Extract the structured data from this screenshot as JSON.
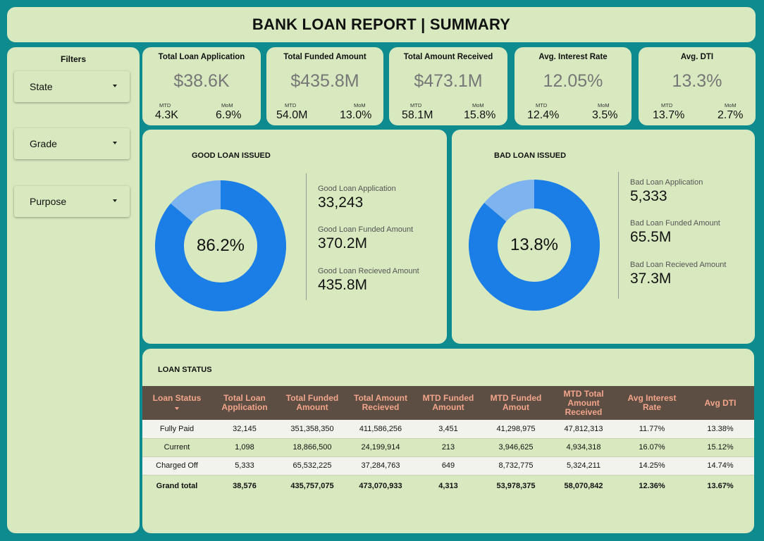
{
  "header": {
    "title": "BANK LOAN REPORT | SUMMARY"
  },
  "filters": {
    "title": "Filters",
    "dropdowns": [
      {
        "label": "State"
      },
      {
        "label": "Grade"
      },
      {
        "label": "Purpose"
      }
    ]
  },
  "kpis": [
    {
      "title": "Total Loan Application",
      "value": "$38.6K",
      "mtd_label": "MTD",
      "mtd": "4.3K",
      "mom_label": "MoM",
      "mom": "6.9%"
    },
    {
      "title": "Total Funded Amount",
      "value": "$435.8M",
      "mtd_label": "MTD",
      "mtd": "54.0M",
      "mom_label": "MoM",
      "mom": "13.0%"
    },
    {
      "title": "Total Amount Received",
      "value": "$473.1M",
      "mtd_label": "MTD",
      "mtd": "58.1M",
      "mom_label": "MoM",
      "mom": "15.8%"
    },
    {
      "title": "Avg. Interest Rate",
      "value": "12.05%",
      "mtd_label": "MTD",
      "mtd": "12.4%",
      "mom_label": "MoM",
      "mom": "3.5%"
    },
    {
      "title": "Avg. DTI",
      "value": "13.3%",
      "mtd_label": "MTD",
      "mtd": "13.7%",
      "mom_label": "MoM",
      "mom": "2.7%"
    }
  ],
  "good_loan": {
    "title": "GOOD LOAN ISSUED",
    "percent_label": "86.2%",
    "percent": 86.2,
    "stats": [
      {
        "label": "Good Loan Application",
        "value": "33,243"
      },
      {
        "label": "Good Loan Funded Amount",
        "value": "370.2M"
      },
      {
        "label": "Good Loan Recieved Amount",
        "value": "435.8M"
      }
    ]
  },
  "bad_loan": {
    "title": "BAD LOAN ISSUED",
    "percent_label": "13.8%",
    "percent": 13.8,
    "stats": [
      {
        "label": "Bad Loan Application",
        "value": "5,333"
      },
      {
        "label": "Bad Loan Funded Amount",
        "value": "65.5M"
      },
      {
        "label": "Bad Loan Recieved Amount",
        "value": "37.3M"
      }
    ]
  },
  "colors": {
    "donut_primary": "#1a7ee6",
    "donut_secondary": "#7db3ef",
    "panel": "#d8e9bf",
    "background": "#0e8b8f",
    "table_header": "#5d4e44",
    "table_header_text": "#f2a58a"
  },
  "loan_status": {
    "title": "LOAN STATUS",
    "columns": [
      "Loan Status",
      "Total Loan Application",
      "Total Funded Amount",
      "Total Amount Recieved",
      "MTD Funded Amount",
      "MTD Funded Amout",
      "MTD Total Amount Received",
      "Avg Interest Rate",
      "Avg DTI"
    ],
    "rows": [
      [
        "Fully Paid",
        "32,145",
        "351,358,350",
        "411,586,256",
        "3,451",
        "41,298,975",
        "47,812,313",
        "11.77%",
        "13.38%"
      ],
      [
        "Current",
        "1,098",
        "18,866,500",
        "24,199,914",
        "213",
        "3,946,625",
        "4,934,318",
        "16.07%",
        "15.12%"
      ],
      [
        "Charged Off",
        "5,333",
        "65,532,225",
        "37,284,763",
        "649",
        "8,732,775",
        "5,324,211",
        "14.25%",
        "14.74%"
      ]
    ],
    "total": [
      "Grand total",
      "38,576",
      "435,757,075",
      "473,070,933",
      "4,313",
      "53,978,375",
      "58,070,842",
      "12.36%",
      "13.67%"
    ]
  }
}
